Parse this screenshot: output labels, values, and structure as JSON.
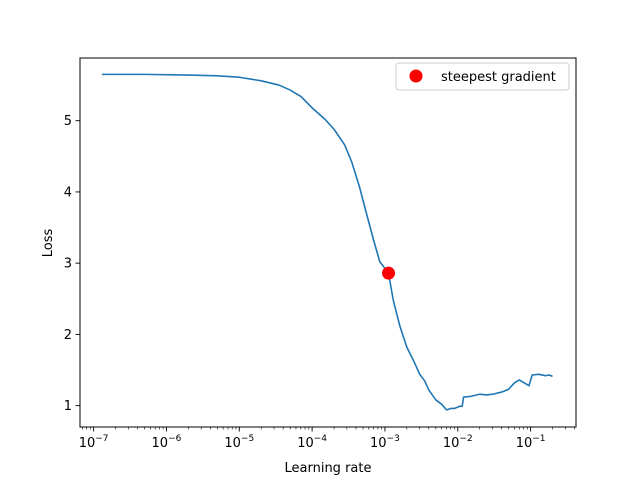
{
  "chart_data": {
    "type": "line",
    "xlabel": "Learning rate",
    "ylabel": "Loss",
    "xscale": "log",
    "xlim": [
      6.5e-08,
      0.42
    ],
    "ylim": [
      0.7,
      5.88
    ],
    "x_ticks": [
      {
        "value": 1e-07,
        "base": "10",
        "exp": "−7"
      },
      {
        "value": 1e-06,
        "base": "10",
        "exp": "−6"
      },
      {
        "value": 1e-05,
        "base": "10",
        "exp": "−5"
      },
      {
        "value": 0.0001,
        "base": "10",
        "exp": "−4"
      },
      {
        "value": 0.001,
        "base": "10",
        "exp": "−3"
      },
      {
        "value": 0.01,
        "base": "10",
        "exp": "−2"
      },
      {
        "value": 0.1,
        "base": "10",
        "exp": "−1"
      }
    ],
    "y_ticks": [
      {
        "value": 1,
        "label": "1"
      },
      {
        "value": 2,
        "label": "2"
      },
      {
        "value": 3,
        "label": "3"
      },
      {
        "value": 4,
        "label": "4"
      },
      {
        "value": 5,
        "label": "5"
      }
    ],
    "grid": false,
    "legend_position": "top-right",
    "series": [
      {
        "color": "#1f77b4",
        "points": [
          [
            1.3e-07,
            5.65
          ],
          [
            5e-07,
            5.65
          ],
          [
            2e-06,
            5.64
          ],
          [
            5e-06,
            5.63
          ],
          [
            1e-05,
            5.61
          ],
          [
            2e-05,
            5.56
          ],
          [
            3.5e-05,
            5.5
          ],
          [
            5e-05,
            5.43
          ],
          [
            7e-05,
            5.34
          ],
          [
            0.0001,
            5.18
          ],
          [
            0.00015,
            5.02
          ],
          [
            0.0002,
            4.88
          ],
          [
            0.00028,
            4.66
          ],
          [
            0.00035,
            4.42
          ],
          [
            0.00045,
            4.06
          ],
          [
            0.00055,
            3.72
          ],
          [
            0.0007,
            3.32
          ],
          [
            0.00085,
            3.02
          ],
          [
            0.00112,
            2.86
          ],
          [
            0.0013,
            2.48
          ],
          [
            0.0016,
            2.12
          ],
          [
            0.002,
            1.82
          ],
          [
            0.0025,
            1.62
          ],
          [
            0.003,
            1.44
          ],
          [
            0.0035,
            1.35
          ],
          [
            0.004,
            1.22
          ],
          [
            0.005,
            1.08
          ],
          [
            0.006,
            1.02
          ],
          [
            0.007,
            0.94
          ],
          [
            0.008,
            0.96
          ],
          [
            0.009,
            0.96
          ],
          [
            0.0105,
            0.99
          ],
          [
            0.0115,
            0.99
          ],
          [
            0.012,
            1.12
          ],
          [
            0.015,
            1.13
          ],
          [
            0.02,
            1.16
          ],
          [
            0.025,
            1.15
          ],
          [
            0.03,
            1.16
          ],
          [
            0.04,
            1.19
          ],
          [
            0.05,
            1.23
          ],
          [
            0.06,
            1.32
          ],
          [
            0.07,
            1.36
          ],
          [
            0.085,
            1.31
          ],
          [
            0.095,
            1.28
          ],
          [
            0.105,
            1.43
          ],
          [
            0.13,
            1.44
          ],
          [
            0.16,
            1.42
          ],
          [
            0.18,
            1.43
          ],
          [
            0.2,
            1.41
          ]
        ]
      },
      {
        "name": "steepest gradient",
        "type": "scatter",
        "color": "#ff0000",
        "points": [
          [
            0.00112,
            2.86
          ]
        ]
      }
    ]
  }
}
